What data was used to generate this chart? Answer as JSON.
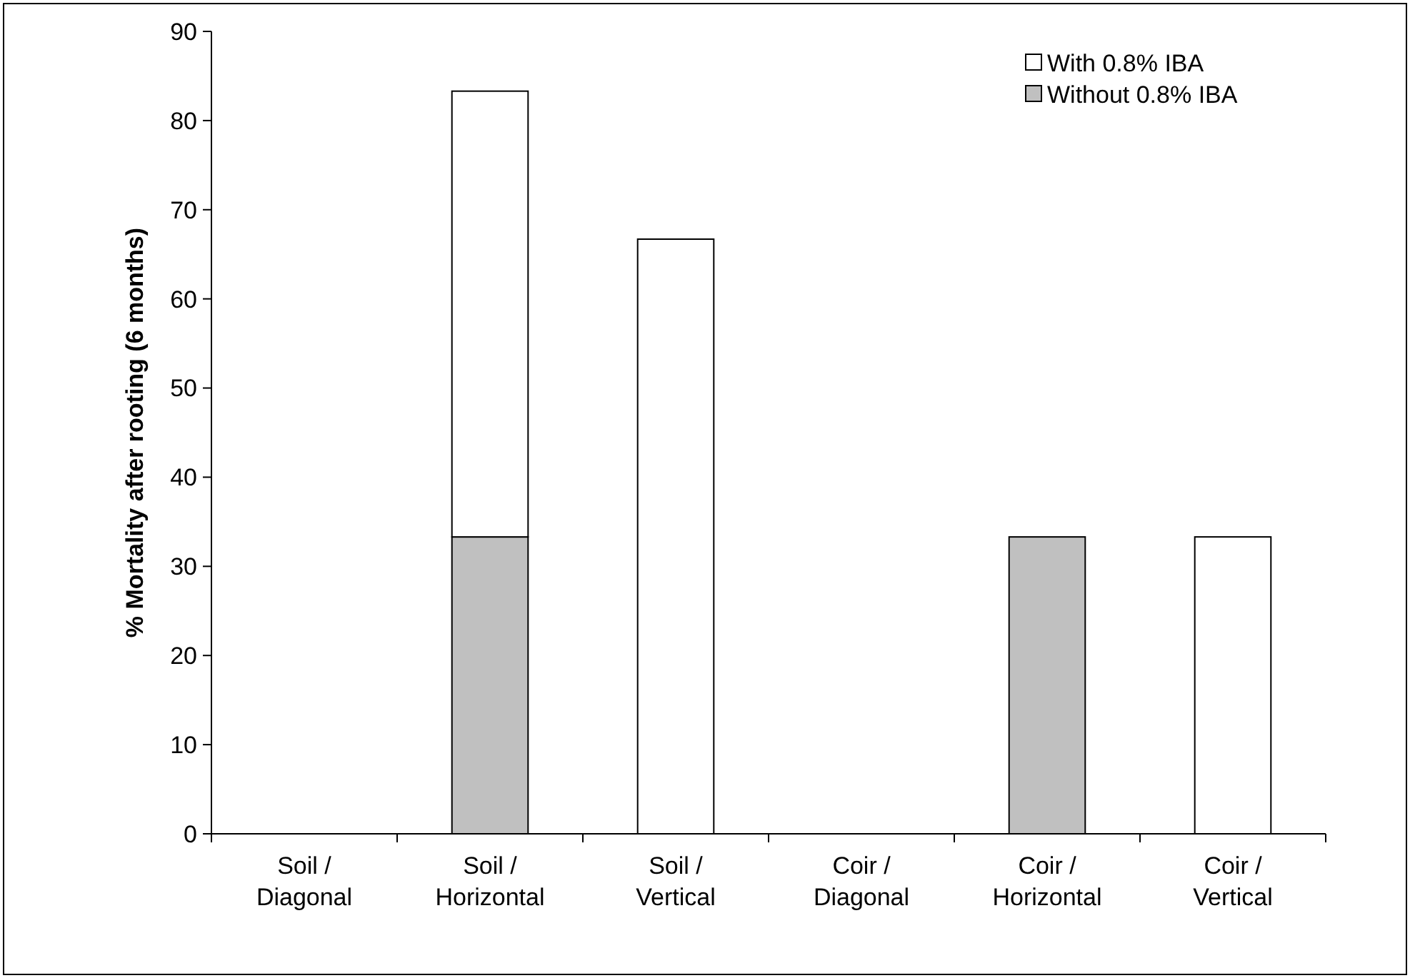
{
  "chart_data": {
    "type": "bar",
    "stacked": true,
    "ylabel": "% Mortality after rooting (6 months)",
    "categories": [
      "Soil / Diagonal",
      "Soil / Horizontal",
      "Soil / Vertical",
      "Coir / Diagonal",
      "Coir / Horizontal",
      "Coir / Vertical"
    ],
    "series": [
      {
        "name": "Without 0.8% IBA",
        "color": "#c0c0c0",
        "values": [
          0,
          33.3,
          0,
          0,
          33.3,
          0
        ]
      },
      {
        "name": "With 0.8% IBA",
        "color": "#ffffff",
        "values": [
          0,
          50,
          66.7,
          0,
          0,
          33.3
        ]
      }
    ],
    "ylim": [
      0,
      90
    ],
    "yticks": [
      0,
      10,
      20,
      30,
      40,
      50,
      60,
      70,
      80,
      90
    ],
    "grid": false,
    "legend": "top right"
  }
}
